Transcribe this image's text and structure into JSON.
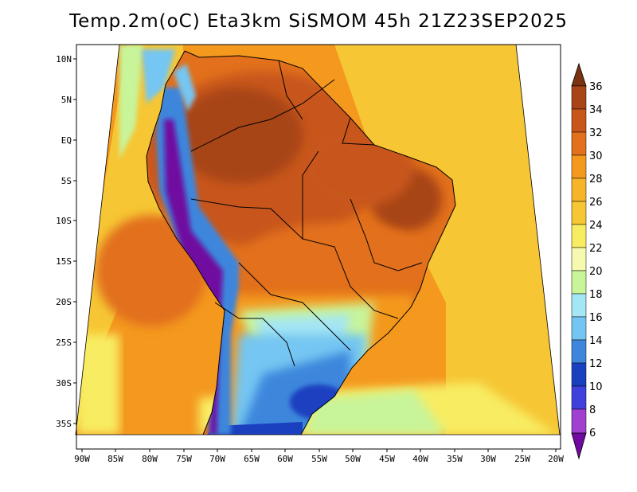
{
  "title": "Temp.2m(oC) Eta3km SiSMOM 45h 21Z23SEP2025",
  "map": {
    "lon_labels": [
      "90W",
      "85W",
      "80W",
      "75W",
      "70W",
      "65W",
      "60W",
      "55W",
      "50W",
      "45W",
      "40W",
      "35W",
      "30W",
      "25W",
      "20W"
    ],
    "lat_labels": [
      "10N",
      "5N",
      "EQ",
      "5S",
      "10S",
      "15S",
      "20S",
      "25S",
      "30S",
      "35S"
    ],
    "lon_range": [
      -91,
      -20
    ],
    "lat_range": [
      11,
      -38
    ]
  },
  "colorbar": {
    "labels": [
      "36",
      "34",
      "32",
      "30",
      "28",
      "26",
      "24",
      "22",
      "20",
      "18",
      "16",
      "14",
      "12",
      "10",
      "8",
      "6"
    ],
    "colors": [
      "#7a3210",
      "#a84418",
      "#c8561a",
      "#e2701c",
      "#f4981e",
      "#f6c634",
      "#f8ec62",
      "#f6fab0",
      "#c8f49a",
      "#a4e6f4",
      "#74c6f2",
      "#3e86dc",
      "#1a40c0",
      "#0a14a0",
      "#4040dc",
      "#a040d0",
      "#700aa0"
    ]
  }
}
